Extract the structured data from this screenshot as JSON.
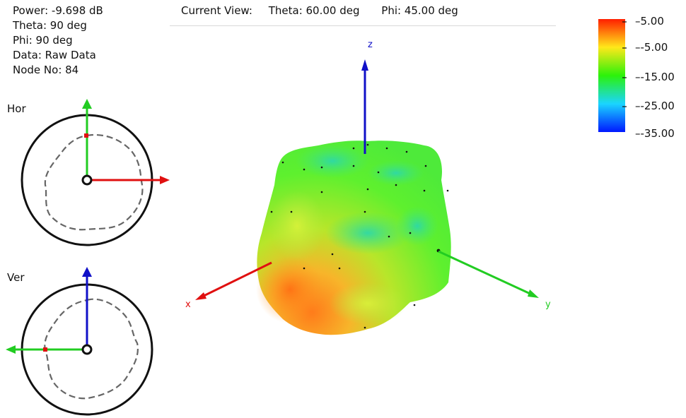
{
  "info": {
    "power": "Power: -9.698 dB",
    "theta": "Theta: 90 deg",
    "phi": "Phi: 90 deg",
    "data": "Data: Raw Data",
    "node": "Node No: 84"
  },
  "current_view": {
    "label": "Current View:",
    "theta": "Theta: 60.00 deg",
    "phi": "Phi: 45.00 deg"
  },
  "polar": {
    "hor_label": "Hor",
    "ver_label": "Ver"
  },
  "axes": {
    "x": "x",
    "y": "y",
    "z": "z"
  },
  "color_scale": {
    "ticks": [
      "5.00",
      "-5.00",
      "-15.00",
      "-25.00",
      "-35.00"
    ],
    "colors": [
      "#ff1e00",
      "#ffe81a",
      "#2cf20a",
      "#1ad5ff",
      "#0018ff"
    ]
  }
}
